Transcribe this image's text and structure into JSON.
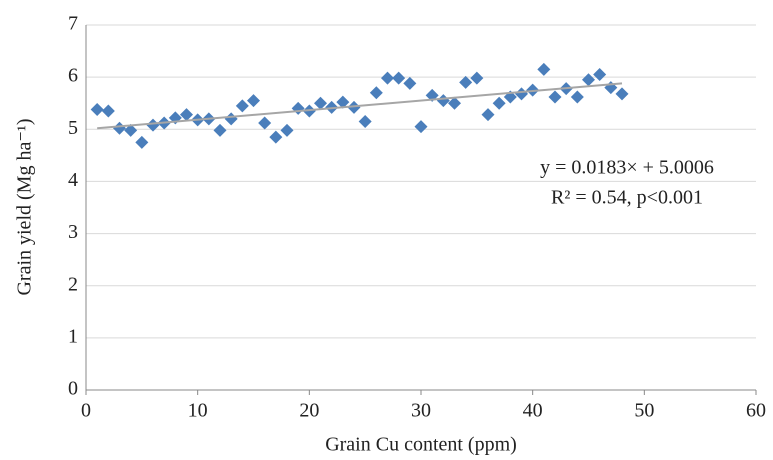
{
  "chart_data": {
    "type": "scatter",
    "xlabel": "Grain Cu content (ppm)",
    "ylabel": "Grain yield (Mg ha⁻¹)",
    "x": [
      1,
      2,
      3,
      4,
      5,
      6,
      7,
      8,
      9,
      10,
      11,
      12,
      13,
      14,
      15,
      16,
      17,
      18,
      19,
      20,
      21,
      22,
      23,
      24,
      25,
      26,
      27,
      28,
      29,
      30,
      31,
      32,
      33,
      34,
      35,
      36,
      37,
      38,
      39,
      40,
      41,
      42,
      43,
      44,
      45,
      46,
      47,
      48
    ],
    "series": [
      {
        "color": "#4a7ebb",
        "values": [
          5.38,
          5.35,
          5.02,
          4.98,
          4.75,
          5.08,
          5.12,
          5.22,
          5.28,
          5.18,
          5.2,
          4.98,
          5.2,
          5.45,
          5.55,
          5.12,
          4.85,
          4.98,
          5.4,
          5.35,
          5.5,
          5.42,
          5.52,
          5.42,
          5.15,
          5.7,
          5.98,
          5.98,
          5.88,
          5.05,
          5.65,
          5.55,
          5.5,
          5.9,
          5.98,
          5.28,
          5.5,
          5.62,
          5.68,
          5.75,
          6.15,
          5.62,
          5.78,
          5.62,
          5.95,
          6.05,
          5.8,
          5.68
        ]
      }
    ],
    "trendline": {
      "color": "#a6a6a6",
      "x": [
        1,
        48
      ],
      "y": [
        5.02,
        5.88
      ]
    },
    "annotations": [
      "y = 0.0183× + 5.0006",
      "R² = 0.54, p<0.001"
    ],
    "xlim": [
      0,
      60
    ],
    "xticks": [
      0,
      10,
      20,
      30,
      40,
      50,
      60
    ],
    "ylim": [
      0,
      7
    ],
    "yticks": [
      0,
      1,
      2,
      3,
      4,
      5,
      6,
      7
    ],
    "grid": true
  }
}
